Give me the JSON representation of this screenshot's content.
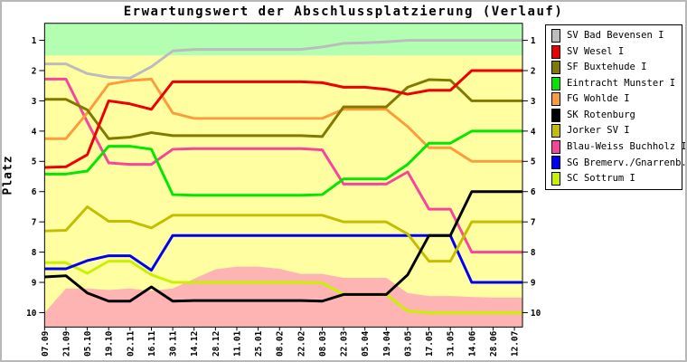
{
  "chart_data": {
    "type": "line",
    "title": "Erwartungswert der Abschlussplatzierung (Verlauf)",
    "ylabel": "Platz",
    "y_axis_inverted": true,
    "y_ticks": [
      1,
      2,
      3,
      4,
      5,
      6,
      7,
      8,
      9,
      10
    ],
    "y_ticks_both_sides": true,
    "ylim": [
      0.44,
      10.47
    ],
    "x_tick_rotation": -90,
    "legend_position": "right",
    "x_labels": [
      "07.09",
      "21.09",
      "05.10",
      "19.10",
      "02.11",
      "16.11",
      "30.11",
      "14.12",
      "28.12",
      "11.01",
      "25.01",
      "08.02",
      "22.02",
      "08.03",
      "22.03",
      "05.04",
      "19.04",
      "03.05",
      "17.05",
      "31.05",
      "14.06",
      "28.06",
      "12.07"
    ],
    "bands": {
      "promotion_zone": {
        "color": "#b2ffb2",
        "from_top_of_plot": true,
        "to_rank": 1.5
      },
      "middle_zone": {
        "color": "#ffffa2"
      },
      "relegation_zone": {
        "color": "#ffb4b4",
        "to_bottom_of_plot": true,
        "top_edge_by_date": [
          10.0,
          9.2,
          9.2,
          9.25,
          9.2,
          9.28,
          9.2,
          8.88,
          8.57,
          8.48,
          8.48,
          8.55,
          8.72,
          8.72,
          8.85,
          8.85,
          8.85,
          9.35,
          9.45,
          9.45,
          9.48,
          9.5,
          9.5
        ]
      }
    },
    "series": [
      {
        "name": "SV Bad Bevensen I",
        "color": "#bcbcbc",
        "values": [
          1.78,
          1.78,
          2.1,
          2.22,
          2.25,
          1.87,
          1.35,
          1.3,
          1.3,
          1.3,
          1.3,
          1.3,
          1.3,
          1.22,
          1.1,
          1.08,
          1.05,
          1.0,
          1.0,
          1.0,
          1.0,
          1.0,
          1.0
        ]
      },
      {
        "name": "SV Wesel I",
        "color": "#ee0000",
        "values": [
          5.2,
          5.18,
          4.78,
          3.0,
          3.1,
          3.28,
          2.37,
          2.37,
          2.37,
          2.37,
          2.37,
          2.37,
          2.37,
          2.4,
          2.55,
          2.55,
          2.62,
          2.78,
          2.65,
          2.65,
          2.0,
          2.0,
          2.0
        ]
      },
      {
        "name": "SF Buxtehude I",
        "color": "#827a00",
        "values": [
          2.95,
          2.95,
          3.3,
          4.25,
          4.2,
          4.05,
          4.15,
          4.15,
          4.15,
          4.15,
          4.15,
          4.15,
          4.15,
          4.18,
          3.2,
          3.2,
          3.2,
          2.55,
          2.3,
          2.32,
          3.0,
          3.0,
          3.0
        ]
      },
      {
        "name": "Eintracht Munster I",
        "color": "#00e800",
        "values": [
          5.42,
          5.42,
          5.32,
          4.5,
          4.5,
          4.6,
          6.1,
          6.12,
          6.12,
          6.12,
          6.12,
          6.12,
          6.12,
          6.1,
          5.58,
          5.58,
          5.58,
          5.1,
          4.4,
          4.4,
          4.0,
          4.0,
          4.0
        ]
      },
      {
        "name": "FG Wohlde I",
        "color": "#fc9c3a",
        "values": [
          4.25,
          4.25,
          3.4,
          2.45,
          2.33,
          2.28,
          3.4,
          3.58,
          3.58,
          3.58,
          3.58,
          3.58,
          3.58,
          3.58,
          3.28,
          3.28,
          3.28,
          3.85,
          4.55,
          4.55,
          5.0,
          5.0,
          5.0
        ]
      },
      {
        "name": "SK Rotenburg",
        "color": "#000000",
        "values": [
          8.82,
          8.78,
          9.35,
          9.62,
          9.62,
          9.15,
          9.62,
          9.6,
          9.6,
          9.6,
          9.6,
          9.6,
          9.6,
          9.62,
          9.4,
          9.4,
          9.4,
          8.75,
          7.45,
          7.45,
          6.0,
          6.0,
          6.0
        ]
      },
      {
        "name": "Jorker SV I",
        "color": "#c5bd00",
        "values": [
          7.3,
          7.28,
          6.5,
          6.98,
          6.98,
          7.2,
          6.78,
          6.78,
          6.78,
          6.78,
          6.78,
          6.78,
          6.78,
          6.78,
          7.0,
          7.0,
          7.0,
          7.4,
          8.3,
          8.3,
          7.0,
          7.0,
          7.0
        ]
      },
      {
        "name": "Blau-Weiss Buchholz I",
        "color": "#f8459c",
        "values": [
          2.28,
          2.28,
          3.7,
          5.05,
          5.1,
          5.1,
          4.6,
          4.58,
          4.58,
          4.58,
          4.58,
          4.58,
          4.58,
          4.62,
          5.75,
          5.75,
          5.75,
          5.35,
          6.58,
          6.58,
          8.0,
          8.0,
          8.0
        ]
      },
      {
        "name": "SG Bremerv./Gnarrenb.",
        "color": "#0000f8",
        "values": [
          8.55,
          8.55,
          8.28,
          8.12,
          8.12,
          8.6,
          7.45,
          7.45,
          7.45,
          7.45,
          7.45,
          7.45,
          7.45,
          7.45,
          7.45,
          7.45,
          7.45,
          7.45,
          7.45,
          7.45,
          9.0,
          9.0,
          9.0
        ]
      },
      {
        "name": "SC Sottrum I",
        "color": "#c8f000",
        "values": [
          8.35,
          8.35,
          8.7,
          8.3,
          8.3,
          8.75,
          9.0,
          9.0,
          9.0,
          9.0,
          9.0,
          9.0,
          9.0,
          9.02,
          9.4,
          9.4,
          9.4,
          9.95,
          10.0,
          10.0,
          10.0,
          10.0,
          10.0
        ]
      }
    ]
  }
}
